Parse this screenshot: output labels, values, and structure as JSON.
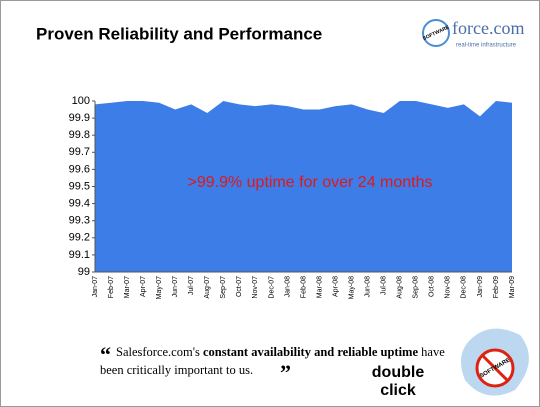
{
  "header": {
    "title": "Proven Reliability and Performance",
    "badge": "SOFTWARE",
    "logo": "force.com",
    "logo_tagline": "real-time infrastructure"
  },
  "chart_data": {
    "type": "area",
    "categories": [
      "Jan-07",
      "Feb-07",
      "Mar-07",
      "Apr-07",
      "May-07",
      "Jun-07",
      "Jul-07",
      "Aug-07",
      "Sep-07",
      "Oct-07",
      "Nov-07",
      "Dec-07",
      "Jan-08",
      "Feb-08",
      "Mar-08",
      "Apr-08",
      "May-08",
      "Jun-08",
      "Jul-08",
      "Aug-08",
      "Sep-08",
      "Oct-08",
      "Nov-08",
      "Dec-08",
      "Jan-09",
      "Feb-09",
      "Mar-09"
    ],
    "values": [
      99.98,
      99.99,
      100,
      100,
      99.99,
      99.95,
      99.98,
      99.93,
      100,
      99.98,
      99.97,
      99.98,
      99.97,
      99.95,
      99.95,
      99.97,
      99.98,
      99.95,
      99.93,
      100,
      100,
      99.98,
      99.96,
      99.98,
      99.91,
      100,
      99.99
    ],
    "color": "#3d7de8",
    "ylim": [
      99,
      100
    ],
    "yticks": [
      99,
      99.1,
      99.2,
      99.3,
      99.4,
      99.5,
      99.6,
      99.7,
      99.8,
      99.9,
      100
    ],
    "annotation": ">99.9% uptime for over 24 months"
  },
  "quote": {
    "open_mark": "“",
    "part1": "Salesforce.com's ",
    "part2": "constant availability and reliable uptime",
    "part3": " have",
    "part4": "been critically important to us.",
    "close_mark": "”"
  },
  "footer": {
    "logo_top": "double",
    "logo_bottom": "click",
    "stamp": "SOFTWARE"
  }
}
